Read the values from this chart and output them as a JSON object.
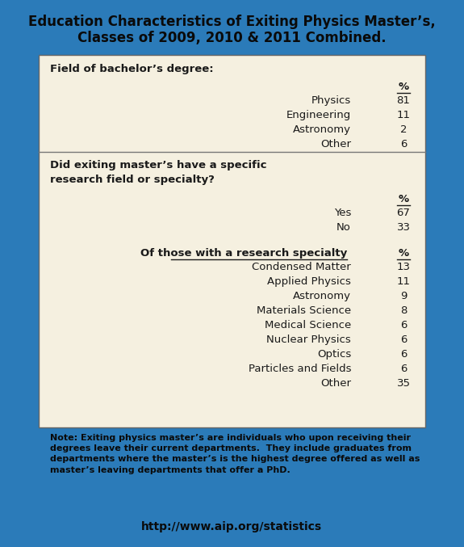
{
  "title_line1": "Education Characteristics of Exiting Physics Master’s,",
  "title_line2": "Classes of 2009, 2010 & 2011 Combined.",
  "bg_color": "#2b7bb9",
  "box_bg_color": "#f5f0e0",
  "title_color": "#0a0a0a",
  "text_color": "#1a1a1a",
  "note_text": "Note: Exiting physics master’s are individuals who upon receiving their\ndegrees leave their current departments.  They include graduates from\ndepartments where the master’s is the highest degree offered as well as\nmaster’s leaving departments that offer a PhD.",
  "url_text": "http://www.aip.org/statistics",
  "section1_header": "Field of bachelor’s degree:",
  "section1_rows": [
    [
      "Physics",
      "81"
    ],
    [
      "Engineering",
      "11"
    ],
    [
      "Astronomy",
      "2"
    ],
    [
      "Other",
      "6"
    ]
  ],
  "section2_header1": "Did exiting master’s have a specific",
  "section2_header2": "research field or specialty?",
  "section2_rows": [
    [
      "Yes",
      "67"
    ],
    [
      "No",
      "33"
    ]
  ],
  "section3_header": "Of those with a research specialty",
  "section3_rows": [
    [
      "Condensed Matter",
      "13"
    ],
    [
      "Applied Physics",
      "11"
    ],
    [
      "Astronomy",
      "9"
    ],
    [
      "Materials Science",
      "8"
    ],
    [
      "Medical Science",
      "6"
    ],
    [
      "Nuclear Physics",
      "6"
    ],
    [
      "Optics",
      "6"
    ],
    [
      "Particles and Fields",
      "6"
    ],
    [
      "Other",
      "35"
    ]
  ],
  "figsize": [
    5.75,
    6.77
  ],
  "dpi": 100
}
